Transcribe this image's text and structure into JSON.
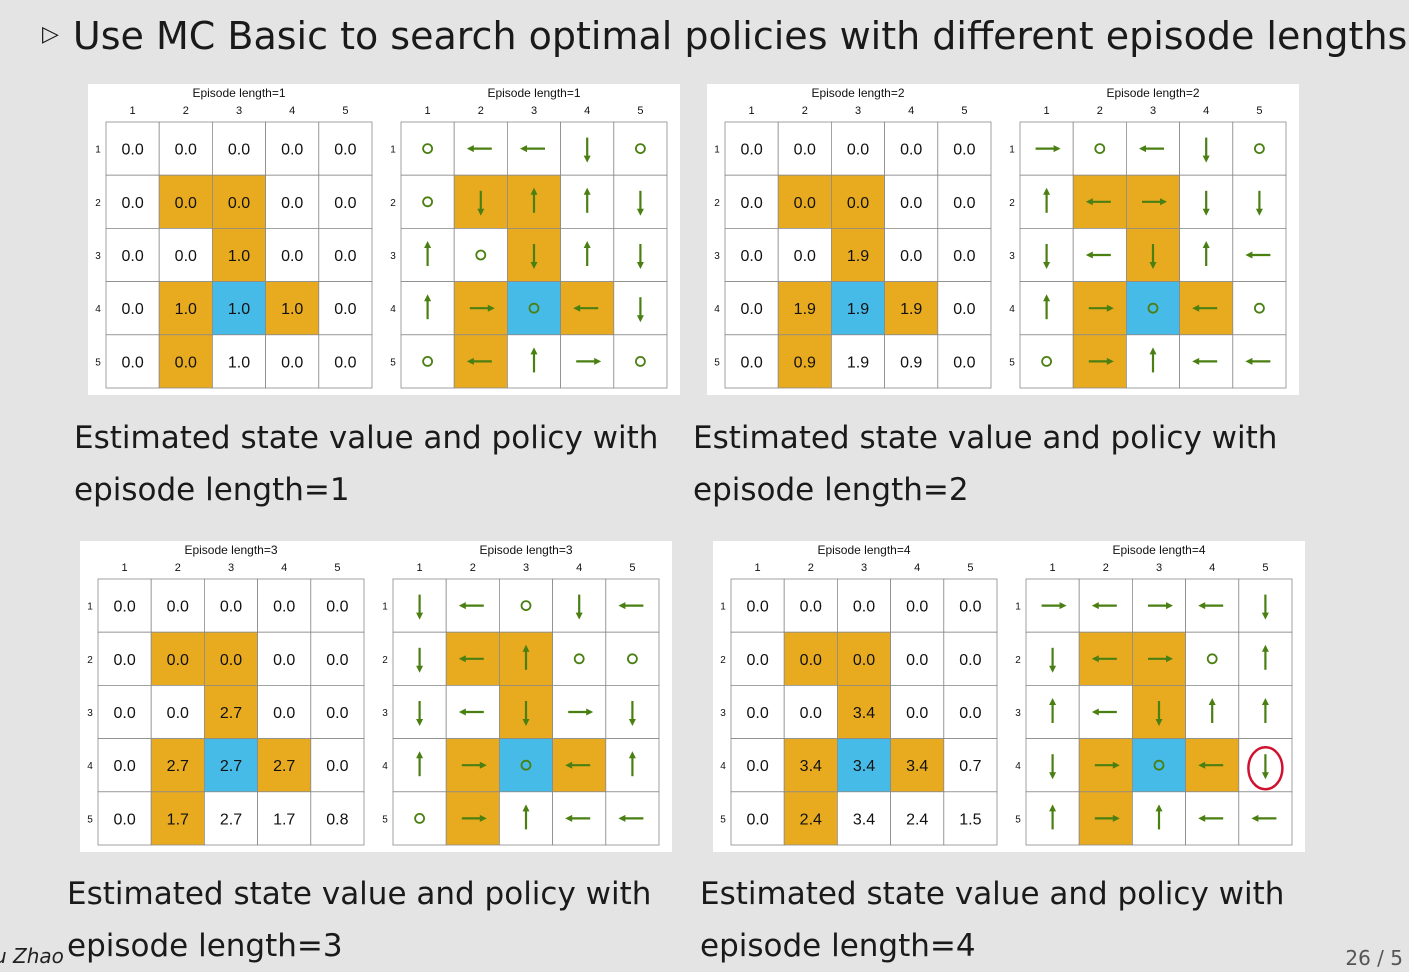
{
  "slide": {
    "bullet_symbol": "▷",
    "heading": "Use MC Basic to search optimal policies with different episode lengths.",
    "footer_author": "u Zhao",
    "footer_page": "26 / 5"
  },
  "colors": {
    "forbidden": "#e8ab1f",
    "target": "#47bbe8",
    "arrow": "#4a7f12",
    "grid_line": "#8a8a8a"
  },
  "columns": [
    "1",
    "2",
    "3",
    "4",
    "5"
  ],
  "rows": [
    "1",
    "2",
    "3",
    "4",
    "5"
  ],
  "cell_types": [
    [
      "n",
      "n",
      "n",
      "n",
      "n"
    ],
    [
      "n",
      "f",
      "f",
      "n",
      "n"
    ],
    [
      "n",
      "n",
      "f",
      "n",
      "n"
    ],
    [
      "n",
      "f",
      "t",
      "f",
      "n"
    ],
    [
      "n",
      "f",
      "n",
      "n",
      "n"
    ]
  ],
  "panels": [
    {
      "caption_line1": "Estimated state value and policy with",
      "caption_line2": "episode length=1",
      "value_title": "Episode length=1",
      "policy_title": "Episode length=1",
      "values": [
        [
          "0.0",
          "0.0",
          "0.0",
          "0.0",
          "0.0"
        ],
        [
          "0.0",
          "0.0",
          "0.0",
          "0.0",
          "0.0"
        ],
        [
          "0.0",
          "0.0",
          "1.0",
          "0.0",
          "0.0"
        ],
        [
          "0.0",
          "1.0",
          "1.0",
          "1.0",
          "0.0"
        ],
        [
          "0.0",
          "0.0",
          "1.0",
          "0.0",
          "0.0"
        ]
      ],
      "policy": [
        [
          "stay",
          "left",
          "left",
          "down",
          "stay"
        ],
        [
          "stay",
          "down",
          "up",
          "up",
          "down"
        ],
        [
          "up",
          "stay",
          "down",
          "up",
          "down"
        ],
        [
          "up",
          "right",
          "stay",
          "left",
          "down"
        ],
        [
          "stay",
          "left",
          "up",
          "right",
          "stay"
        ]
      ]
    },
    {
      "caption_line1": "Estimated state value and policy with",
      "caption_line2": "episode length=2",
      "value_title": "Episode length=2",
      "policy_title": "Episode length=2",
      "values": [
        [
          "0.0",
          "0.0",
          "0.0",
          "0.0",
          "0.0"
        ],
        [
          "0.0",
          "0.0",
          "0.0",
          "0.0",
          "0.0"
        ],
        [
          "0.0",
          "0.0",
          "1.9",
          "0.0",
          "0.0"
        ],
        [
          "0.0",
          "1.9",
          "1.9",
          "1.9",
          "0.0"
        ],
        [
          "0.0",
          "0.9",
          "1.9",
          "0.9",
          "0.0"
        ]
      ],
      "policy": [
        [
          "right",
          "stay",
          "left",
          "down",
          "stay"
        ],
        [
          "up",
          "left",
          "right",
          "down",
          "down"
        ],
        [
          "down",
          "left",
          "down",
          "up",
          "left"
        ],
        [
          "up",
          "right",
          "stay",
          "left",
          "stay"
        ],
        [
          "stay",
          "right",
          "up",
          "left",
          "left"
        ]
      ]
    },
    {
      "caption_line1": "Estimated state value and policy with",
      "caption_line2": "episode length=3",
      "value_title": "Episode length=3",
      "policy_title": "Episode length=3",
      "values": [
        [
          "0.0",
          "0.0",
          "0.0",
          "0.0",
          "0.0"
        ],
        [
          "0.0",
          "0.0",
          "0.0",
          "0.0",
          "0.0"
        ],
        [
          "0.0",
          "0.0",
          "2.7",
          "0.0",
          "0.0"
        ],
        [
          "0.0",
          "2.7",
          "2.7",
          "2.7",
          "0.0"
        ],
        [
          "0.0",
          "1.7",
          "2.7",
          "1.7",
          "0.8"
        ]
      ],
      "policy": [
        [
          "down",
          "left",
          "stay",
          "down",
          "left"
        ],
        [
          "down",
          "left",
          "up",
          "stay",
          "stay"
        ],
        [
          "down",
          "left",
          "down",
          "right",
          "down"
        ],
        [
          "up",
          "right",
          "stay",
          "left",
          "up"
        ],
        [
          "stay",
          "right",
          "up",
          "left",
          "left"
        ]
      ]
    },
    {
      "caption_line1": "Estimated state value and policy with",
      "caption_line2": "episode length=4",
      "value_title": "Episode length=4",
      "policy_title": "Episode length=4",
      "values": [
        [
          "0.0",
          "0.0",
          "0.0",
          "0.0",
          "0.0"
        ],
        [
          "0.0",
          "0.0",
          "0.0",
          "0.0",
          "0.0"
        ],
        [
          "0.0",
          "0.0",
          "3.4",
          "0.0",
          "0.0"
        ],
        [
          "0.0",
          "3.4",
          "3.4",
          "3.4",
          "0.7"
        ],
        [
          "0.0",
          "2.4",
          "3.4",
          "2.4",
          "1.5"
        ]
      ],
      "policy": [
        [
          "right",
          "left",
          "right",
          "left",
          "down"
        ],
        [
          "down",
          "left",
          "right",
          "stay",
          "up"
        ],
        [
          "up",
          "left",
          "down",
          "up",
          "up"
        ],
        [
          "down",
          "right",
          "stay",
          "left",
          "down"
        ],
        [
          "up",
          "right",
          "up",
          "left",
          "left"
        ]
      ],
      "highlighted_cell": {
        "row": 4,
        "col": 5,
        "color": "#d0122f"
      }
    }
  ]
}
